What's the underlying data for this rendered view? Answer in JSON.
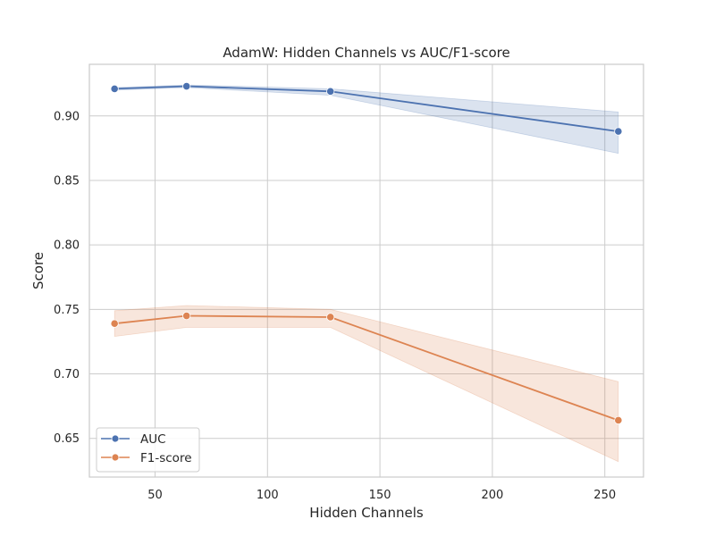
{
  "chart_data": {
    "type": "line",
    "title": "AdamW: Hidden Channels vs AUC/F1-score",
    "xlabel": "Hidden Channels",
    "ylabel": "Score",
    "xlim": [
      20.8,
      267.2
    ],
    "ylim": [
      0.62,
      0.94
    ],
    "xticks": [
      50,
      100,
      150,
      200,
      250
    ],
    "xtick_labels": [
      "50",
      "100",
      "150",
      "200",
      "250"
    ],
    "yticks": [
      0.65,
      0.7,
      0.75,
      0.8,
      0.85,
      0.9
    ],
    "ytick_labels": [
      "0.65",
      "0.70",
      "0.75",
      "0.80",
      "0.85",
      "0.90"
    ],
    "grid": true,
    "legend_position": "lower-left",
    "x": [
      32,
      64,
      128,
      256
    ],
    "series": [
      {
        "name": "AUC",
        "color": "#4c72b0",
        "values": [
          0.921,
          0.923,
          0.919,
          0.888
        ],
        "ci_lower": [
          0.92,
          0.922,
          0.916,
          0.871
        ],
        "ci_upper": [
          0.922,
          0.924,
          0.921,
          0.903
        ]
      },
      {
        "name": "F1-score",
        "color": "#dd8452",
        "values": [
          0.739,
          0.745,
          0.744,
          0.664
        ],
        "ci_lower": [
          0.729,
          0.736,
          0.736,
          0.632
        ],
        "ci_upper": [
          0.749,
          0.753,
          0.75,
          0.694
        ]
      }
    ]
  }
}
